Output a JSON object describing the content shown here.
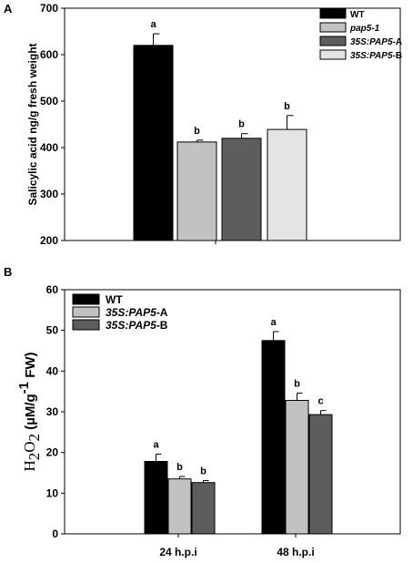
{
  "chart_data": [
    {
      "type": "bar",
      "panel": "A",
      "ylabel": "Salicylic acid ng/g fresh weight",
      "xlabel": "",
      "ylim": [
        200,
        700
      ],
      "yticks": [
        "200",
        "300",
        "400",
        "500",
        "600",
        "700"
      ],
      "legend_position": "top-right",
      "series": [
        {
          "name": "WT",
          "name_parts": [
            "WT",
            ""
          ],
          "value": 620,
          "error": 25,
          "sig": "a",
          "color": "#000000"
        },
        {
          "name": "pap5-1",
          "name_parts": [
            "pap5-1",
            ""
          ],
          "value": 412,
          "error": 4,
          "sig": "b",
          "color": "#c2c2c2"
        },
        {
          "name": "35S:PAP5-A",
          "name_parts": [
            "35S:PAP5",
            "-A"
          ],
          "value": 420,
          "error": 10,
          "sig": "b",
          "color": "#5d5d5d"
        },
        {
          "name": "35S:PAP5-B",
          "name_parts": [
            "35S:PAP5",
            "-B"
          ],
          "value": 439,
          "error": 30,
          "sig": "b",
          "color": "#e4e4e4"
        }
      ]
    },
    {
      "type": "bar",
      "panel": "B",
      "ylabel_parts": {
        "main": "H",
        "sub1": "2",
        "mid": "O",
        "sub2": "2",
        "unit": "(µM/g",
        "sup": "-1",
        "end": " FW)"
      },
      "xlabel": "",
      "ylim": [
        0,
        60
      ],
      "yticks": [
        "0",
        "10",
        "20",
        "30",
        "40",
        "50",
        "60"
      ],
      "categories": [
        "24 h.p.i",
        "48 h.p.i"
      ],
      "legend_position": "top-left",
      "series": [
        {
          "name": "WT",
          "name_parts": [
            "WT",
            ""
          ],
          "values": [
            17.8,
            47.5
          ],
          "errors": [
            1.8,
            2.2
          ],
          "sig": [
            "a",
            "a"
          ],
          "color": "#000000"
        },
        {
          "name": "35S:PAP5-A",
          "name_parts": [
            "35S:PAP5",
            "-A"
          ],
          "values": [
            13.5,
            32.8
          ],
          "errors": [
            0.6,
            1.8
          ],
          "sig": [
            "b",
            "b"
          ],
          "color": "#c2c2c2"
        },
        {
          "name": "35S:PAP5-B",
          "name_parts": [
            "35S:PAP5",
            "-B"
          ],
          "values": [
            12.6,
            29.3
          ],
          "errors": [
            0.5,
            1.0
          ],
          "sig": [
            "b",
            "c"
          ],
          "color": "#5d5d5d"
        }
      ]
    }
  ]
}
